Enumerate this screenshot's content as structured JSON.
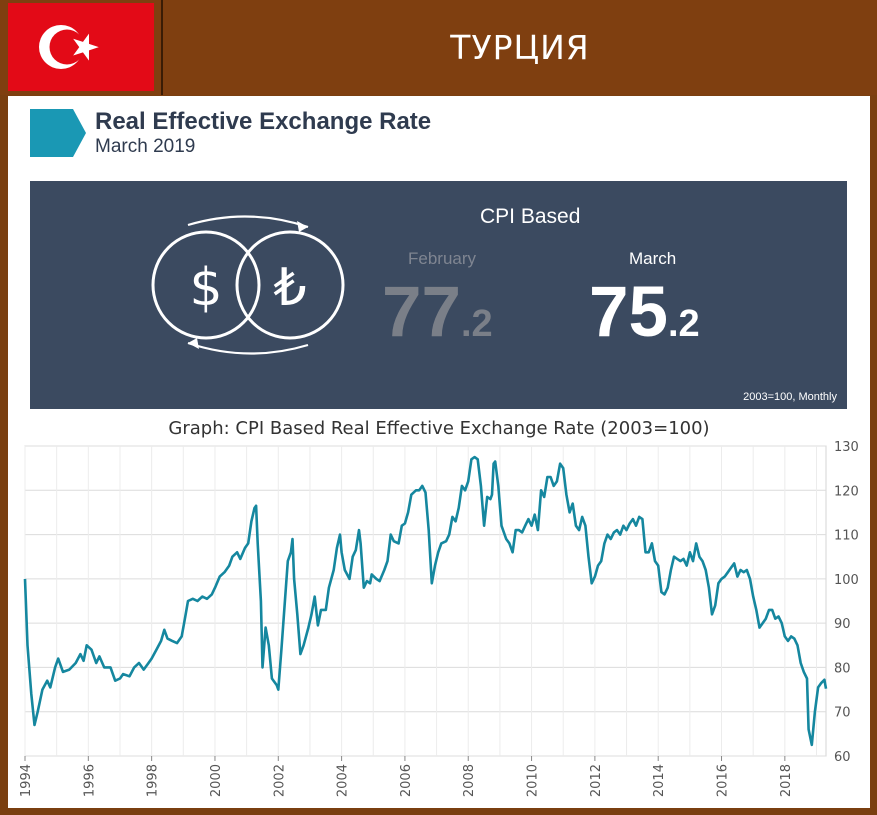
{
  "header": {
    "title": "ТУРЦИЯ"
  },
  "infographic": {
    "title": "Real Effective Exchange Rate",
    "date": "March 2019",
    "box_title": "CPI Based",
    "prev_label": "February",
    "prev_value_int": "77",
    "prev_value_dec": ".2",
    "curr_label": "March",
    "curr_value_int": "75",
    "curr_value_dec": ".2",
    "note": "2003=100, Monthly"
  },
  "colors": {
    "flag_red": "#e30a17",
    "accent": "#1a98b4",
    "dark_box": "#3b4a60",
    "line": "#15879f",
    "frame": "#7f3f10"
  },
  "chart_data": {
    "type": "line",
    "title": "Graph: CPI Based Real Effective Exchange Rate (2003=100)",
    "xlabel": "",
    "ylabel": "",
    "xlim": [
      1994,
      2019.3
    ],
    "ylim": [
      60,
      130
    ],
    "y_ticks": [
      60,
      70,
      80,
      90,
      100,
      110,
      120,
      130
    ],
    "x_ticks": [
      1994,
      1996,
      1998,
      2000,
      2002,
      2004,
      2006,
      2008,
      2010,
      2012,
      2014,
      2016,
      2018
    ],
    "grid": true,
    "y_axis_side": "right",
    "series": [
      {
        "values": [
          [
            1994.0,
            100
          ],
          [
            1994.08,
            85
          ],
          [
            1994.2,
            74
          ],
          [
            1994.3,
            67
          ],
          [
            1994.4,
            70
          ],
          [
            1994.55,
            75
          ],
          [
            1994.7,
            77
          ],
          [
            1994.8,
            75.5
          ],
          [
            1994.95,
            80
          ],
          [
            1995.05,
            82
          ],
          [
            1995.2,
            79
          ],
          [
            1995.4,
            79.5
          ],
          [
            1995.6,
            81
          ],
          [
            1995.75,
            83
          ],
          [
            1995.85,
            81.5
          ],
          [
            1995.95,
            85
          ],
          [
            1996.1,
            84
          ],
          [
            1996.25,
            81
          ],
          [
            1996.35,
            82.5
          ],
          [
            1996.5,
            80
          ],
          [
            1996.7,
            80
          ],
          [
            1996.85,
            77
          ],
          [
            1997.0,
            77.5
          ],
          [
            1997.1,
            78.5
          ],
          [
            1997.3,
            78
          ],
          [
            1997.45,
            80
          ],
          [
            1997.6,
            81
          ],
          [
            1997.75,
            79.5
          ],
          [
            1997.9,
            81
          ],
          [
            1998.0,
            82
          ],
          [
            1998.15,
            84
          ],
          [
            1998.3,
            86
          ],
          [
            1998.4,
            88.5
          ],
          [
            1998.5,
            86.5
          ],
          [
            1998.65,
            86
          ],
          [
            1998.8,
            85.5
          ],
          [
            1998.95,
            87
          ],
          [
            1999.05,
            91
          ],
          [
            1999.15,
            95
          ],
          [
            1999.3,
            95.5
          ],
          [
            1999.45,
            95
          ],
          [
            1999.6,
            96
          ],
          [
            1999.75,
            95.5
          ],
          [
            1999.9,
            96.5
          ],
          [
            2000.0,
            98
          ],
          [
            2000.15,
            100.5
          ],
          [
            2000.3,
            101.5
          ],
          [
            2000.45,
            103
          ],
          [
            2000.55,
            105
          ],
          [
            2000.7,
            106
          ],
          [
            2000.8,
            104.5
          ],
          [
            2000.95,
            107
          ],
          [
            2001.05,
            108
          ],
          [
            2001.15,
            113
          ],
          [
            2001.25,
            116
          ],
          [
            2001.3,
            116.5
          ],
          [
            2001.35,
            108
          ],
          [
            2001.45,
            95
          ],
          [
            2001.5,
            80
          ],
          [
            2001.6,
            89
          ],
          [
            2001.7,
            85
          ],
          [
            2001.8,
            77.5
          ],
          [
            2001.95,
            76
          ],
          [
            2002.0,
            75
          ],
          [
            2002.1,
            84
          ],
          [
            2002.2,
            94
          ],
          [
            2002.3,
            104
          ],
          [
            2002.4,
            106
          ],
          [
            2002.45,
            109
          ],
          [
            2002.5,
            100
          ],
          [
            2002.6,
            92
          ],
          [
            2002.7,
            83
          ],
          [
            2002.8,
            85
          ],
          [
            2002.95,
            89
          ],
          [
            2003.05,
            92
          ],
          [
            2003.15,
            96
          ],
          [
            2003.25,
            89.5
          ],
          [
            2003.35,
            93
          ],
          [
            2003.5,
            93
          ],
          [
            2003.6,
            98
          ],
          [
            2003.75,
            102
          ],
          [
            2003.85,
            107
          ],
          [
            2003.95,
            110
          ],
          [
            2004.0,
            106
          ],
          [
            2004.1,
            102
          ],
          [
            2004.25,
            100
          ],
          [
            2004.35,
            105
          ],
          [
            2004.45,
            106.5
          ],
          [
            2004.55,
            111
          ],
          [
            2004.6,
            108
          ],
          [
            2004.7,
            98
          ],
          [
            2004.8,
            99.5
          ],
          [
            2004.9,
            99
          ],
          [
            2004.95,
            101
          ],
          [
            2005.1,
            100
          ],
          [
            2005.2,
            99.5
          ],
          [
            2005.35,
            102
          ],
          [
            2005.45,
            104
          ],
          [
            2005.55,
            110
          ],
          [
            2005.65,
            108.5
          ],
          [
            2005.8,
            108
          ],
          [
            2005.9,
            112
          ],
          [
            2006.0,
            112.5
          ],
          [
            2006.1,
            115
          ],
          [
            2006.2,
            119
          ],
          [
            2006.35,
            120
          ],
          [
            2006.45,
            120
          ],
          [
            2006.55,
            121
          ],
          [
            2006.65,
            119.5
          ],
          [
            2006.75,
            111
          ],
          [
            2006.85,
            99
          ],
          [
            2006.95,
            103
          ],
          [
            2007.05,
            106
          ],
          [
            2007.15,
            108
          ],
          [
            2007.3,
            108.5
          ],
          [
            2007.4,
            110
          ],
          [
            2007.5,
            114
          ],
          [
            2007.6,
            113
          ],
          [
            2007.7,
            116
          ],
          [
            2007.8,
            121
          ],
          [
            2007.9,
            120
          ],
          [
            2008.0,
            122
          ],
          [
            2008.1,
            127
          ],
          [
            2008.2,
            127.5
          ],
          [
            2008.3,
            127
          ],
          [
            2008.4,
            121
          ],
          [
            2008.5,
            112
          ],
          [
            2008.6,
            118.5
          ],
          [
            2008.7,
            118
          ],
          [
            2008.75,
            119
          ],
          [
            2008.8,
            126
          ],
          [
            2008.85,
            126.5
          ],
          [
            2008.95,
            121
          ],
          [
            2009.05,
            112
          ],
          [
            2009.2,
            109
          ],
          [
            2009.3,
            108
          ],
          [
            2009.4,
            106
          ],
          [
            2009.5,
            111
          ],
          [
            2009.6,
            111
          ],
          [
            2009.7,
            110.5
          ],
          [
            2009.8,
            112
          ],
          [
            2009.9,
            113.5
          ],
          [
            2010.0,
            112
          ],
          [
            2010.1,
            114.5
          ],
          [
            2010.2,
            111
          ],
          [
            2010.3,
            120
          ],
          [
            2010.4,
            118.5
          ],
          [
            2010.5,
            123
          ],
          [
            2010.6,
            123
          ],
          [
            2010.7,
            121
          ],
          [
            2010.8,
            122
          ],
          [
            2010.9,
            126
          ],
          [
            2011.0,
            125
          ],
          [
            2011.1,
            119
          ],
          [
            2011.2,
            115
          ],
          [
            2011.3,
            117
          ],
          [
            2011.4,
            112
          ],
          [
            2011.5,
            111
          ],
          [
            2011.6,
            114
          ],
          [
            2011.7,
            112
          ],
          [
            2011.8,
            105
          ],
          [
            2011.9,
            99
          ],
          [
            2012.0,
            100.5
          ],
          [
            2012.1,
            103
          ],
          [
            2012.2,
            104
          ],
          [
            2012.3,
            108
          ],
          [
            2012.4,
            110
          ],
          [
            2012.5,
            109
          ],
          [
            2012.6,
            110.5
          ],
          [
            2012.7,
            111
          ],
          [
            2012.8,
            110
          ],
          [
            2012.9,
            112
          ],
          [
            2013.0,
            111
          ],
          [
            2013.1,
            112.5
          ],
          [
            2013.2,
            113.5
          ],
          [
            2013.3,
            112
          ],
          [
            2013.4,
            114
          ],
          [
            2013.5,
            113.5
          ],
          [
            2013.6,
            106
          ],
          [
            2013.7,
            106
          ],
          [
            2013.8,
            108
          ],
          [
            2013.9,
            104
          ],
          [
            2014.0,
            103
          ],
          [
            2014.1,
            97
          ],
          [
            2014.2,
            96.5
          ],
          [
            2014.3,
            98
          ],
          [
            2014.4,
            102
          ],
          [
            2014.5,
            105
          ],
          [
            2014.6,
            104.5
          ],
          [
            2014.7,
            104
          ],
          [
            2014.8,
            104.5
          ],
          [
            2014.9,
            103
          ],
          [
            2015.0,
            106
          ],
          [
            2015.1,
            104
          ],
          [
            2015.2,
            108
          ],
          [
            2015.3,
            105
          ],
          [
            2015.4,
            104
          ],
          [
            2015.5,
            102
          ],
          [
            2015.6,
            98
          ],
          [
            2015.7,
            92
          ],
          [
            2015.8,
            94
          ],
          [
            2015.9,
            99
          ],
          [
            2016.0,
            100
          ],
          [
            2016.1,
            100.5
          ],
          [
            2016.2,
            101.5
          ],
          [
            2016.3,
            102.5
          ],
          [
            2016.4,
            103.5
          ],
          [
            2016.5,
            100.5
          ],
          [
            2016.6,
            102
          ],
          [
            2016.7,
            101.5
          ],
          [
            2016.8,
            102
          ],
          [
            2016.9,
            100
          ],
          [
            2017.0,
            96
          ],
          [
            2017.1,
            93
          ],
          [
            2017.2,
            89
          ],
          [
            2017.3,
            90
          ],
          [
            2017.4,
            91
          ],
          [
            2017.5,
            93
          ],
          [
            2017.6,
            93
          ],
          [
            2017.7,
            91
          ],
          [
            2017.8,
            91.5
          ],
          [
            2017.9,
            90
          ],
          [
            2018.0,
            87
          ],
          [
            2018.1,
            86
          ],
          [
            2018.2,
            87
          ],
          [
            2018.3,
            86.5
          ],
          [
            2018.4,
            85
          ],
          [
            2018.5,
            81
          ],
          [
            2018.6,
            79
          ],
          [
            2018.7,
            77.5
          ],
          [
            2018.75,
            66
          ],
          [
            2018.85,
            62.5
          ],
          [
            2018.95,
            70
          ],
          [
            2019.05,
            75.5
          ],
          [
            2019.15,
            76.5
          ],
          [
            2019.25,
            77.2
          ],
          [
            2019.3,
            75.2
          ]
        ]
      }
    ]
  }
}
